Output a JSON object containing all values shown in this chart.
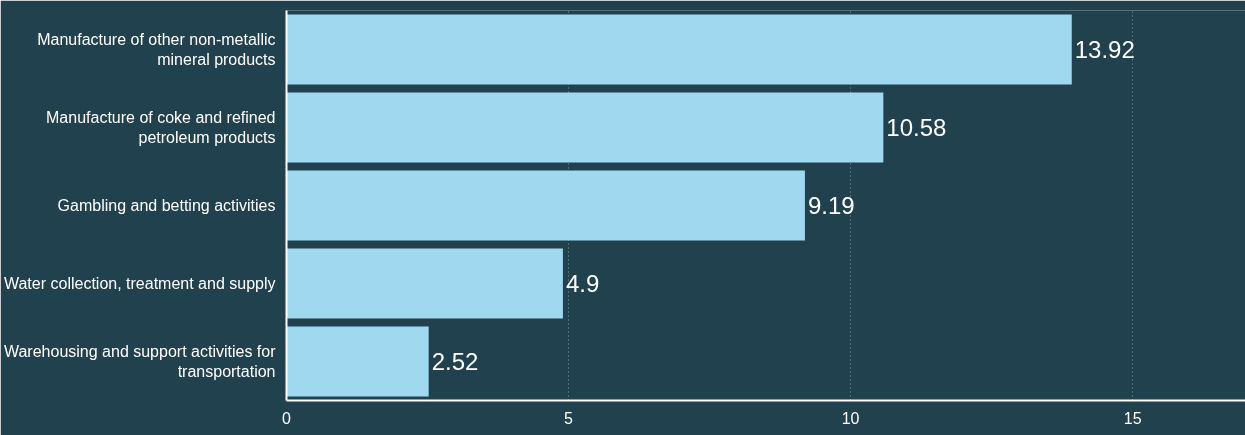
{
  "chart_data": {
    "type": "bar",
    "orientation": "horizontal",
    "categories": [
      "Manufacture of other non-metallic mineral products",
      "Manufacture of coke and refined petroleum products",
      "Gambling and betting activities",
      "Water collection, treatment and supply",
      "Warehousing and support activities for transportation"
    ],
    "values": [
      13.92,
      10.58,
      9.19,
      4.9,
      2.52
    ],
    "color": "#a0d8ef",
    "xlim": [
      0,
      17
    ],
    "xticks": [
      0,
      5,
      10,
      15
    ],
    "grid": "x",
    "data_labels": true
  }
}
